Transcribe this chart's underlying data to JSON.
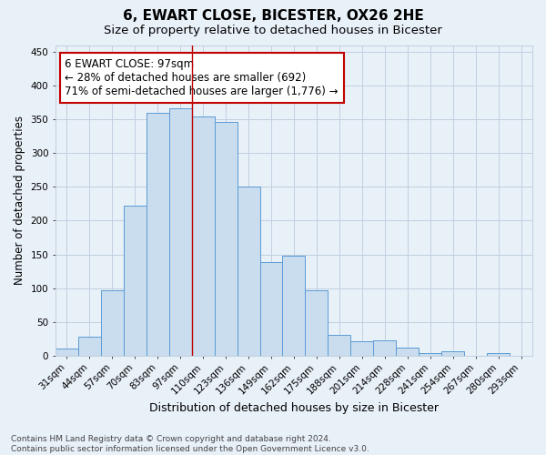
{
  "title": "6, EWART CLOSE, BICESTER, OX26 2HE",
  "subtitle": "Size of property relative to detached houses in Bicester",
  "xlabel": "Distribution of detached houses by size in Bicester",
  "ylabel": "Number of detached properties",
  "categories": [
    "31sqm",
    "44sqm",
    "57sqm",
    "70sqm",
    "83sqm",
    "97sqm",
    "110sqm",
    "123sqm",
    "136sqm",
    "149sqm",
    "162sqm",
    "175sqm",
    "188sqm",
    "201sqm",
    "214sqm",
    "228sqm",
    "241sqm",
    "254sqm",
    "267sqm",
    "280sqm",
    "293sqm"
  ],
  "values": [
    10,
    28,
    97,
    222,
    360,
    367,
    355,
    346,
    250,
    138,
    148,
    96,
    30,
    21,
    23,
    11,
    4,
    6,
    0,
    3,
    0
  ],
  "bar_color": "#c9ddef",
  "bar_edge_color": "#5b9bd5",
  "vline_color": "#c00000",
  "vline_x": 5.5,
  "annotation_text": "6 EWART CLOSE: 97sqm\n← 28% of detached houses are smaller (692)\n71% of semi-detached houses are larger (1,776) →",
  "annotation_box_facecolor": "#ffffff",
  "annotation_box_edgecolor": "#c00000",
  "ylim": [
    0,
    460
  ],
  "yticks": [
    0,
    50,
    100,
    150,
    200,
    250,
    300,
    350,
    400,
    450
  ],
  "grid_color": "#c0d0e0",
  "background_color": "#e8f0f8",
  "footer_line1": "Contains HM Land Registry data © Crown copyright and database right 2024.",
  "footer_line2": "Contains public sector information licensed under the Open Government Licence v3.0.",
  "title_fontsize": 11,
  "subtitle_fontsize": 9.5,
  "xlabel_fontsize": 9,
  "ylabel_fontsize": 8.5,
  "tick_fontsize": 7.5,
  "annotation_fontsize": 8.5,
  "footer_fontsize": 6.5
}
